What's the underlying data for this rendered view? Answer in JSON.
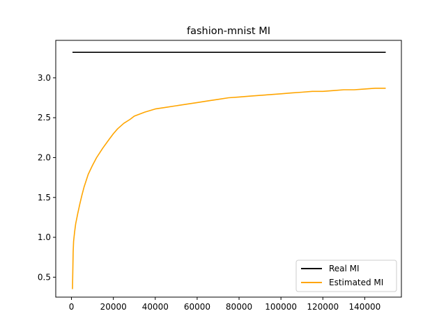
{
  "chart_data": {
    "type": "line",
    "title": "fashion-mnist MI",
    "xlabel": "",
    "ylabel": "",
    "xlim": [
      -7500,
      157500
    ],
    "ylim": [
      0.25,
      3.47
    ],
    "xticks": [
      0,
      20000,
      40000,
      60000,
      80000,
      100000,
      120000,
      140000
    ],
    "xtick_labels": [
      "0",
      "20000",
      "40000",
      "60000",
      "80000",
      "100000",
      "120000",
      "140000"
    ],
    "yticks": [
      0.5,
      1.0,
      1.5,
      2.0,
      2.5,
      3.0
    ],
    "ytick_labels": [
      "0.5",
      "1.0",
      "1.5",
      "2.0",
      "2.5",
      "3.0"
    ],
    "grid": false,
    "legend_position": "lower-right",
    "series": [
      {
        "name": "Real MI",
        "color": "#000000",
        "x": [
          500,
          150000
        ],
        "y": [
          3.32,
          3.32
        ]
      },
      {
        "name": "Estimated MI",
        "color": "#ffa500",
        "x": [
          500,
          800,
          1000,
          1500,
          2000,
          3000,
          4000,
          5000,
          6000,
          8000,
          10000,
          12000,
          15000,
          18000,
          20000,
          22000,
          25000,
          28000,
          30000,
          35000,
          40000,
          45000,
          50000,
          55000,
          60000,
          65000,
          70000,
          75000,
          80000,
          85000,
          90000,
          95000,
          100000,
          105000,
          110000,
          115000,
          120000,
          125000,
          130000,
          135000,
          140000,
          145000,
          150000
        ],
        "y": [
          0.35,
          0.82,
          0.95,
          1.07,
          1.17,
          1.3,
          1.42,
          1.53,
          1.63,
          1.79,
          1.9,
          2.0,
          2.12,
          2.23,
          2.3,
          2.36,
          2.43,
          2.48,
          2.52,
          2.57,
          2.61,
          2.63,
          2.65,
          2.67,
          2.69,
          2.71,
          2.73,
          2.75,
          2.76,
          2.77,
          2.78,
          2.79,
          2.8,
          2.81,
          2.82,
          2.83,
          2.83,
          2.84,
          2.85,
          2.85,
          2.86,
          2.87,
          2.87
        ]
      }
    ]
  }
}
